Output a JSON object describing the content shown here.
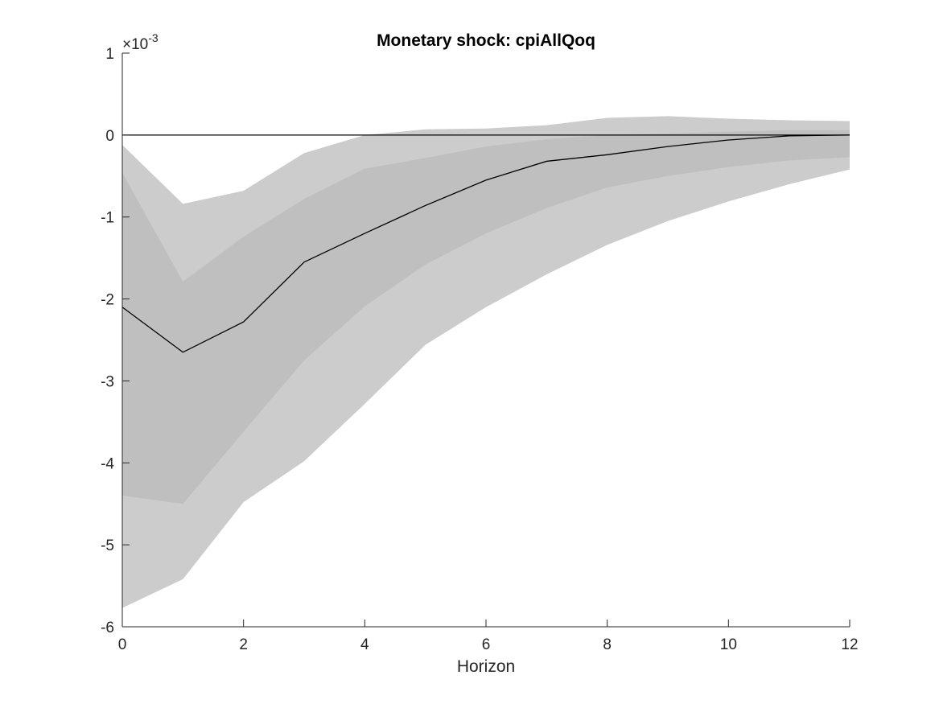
{
  "chart_data": {
    "type": "area",
    "title": "Monetary shock: cpiAllQoq",
    "xlabel": "Horizon",
    "ylabel": "",
    "scale_exponent": {
      "base": "×10",
      "power": "-3"
    },
    "xlim": [
      0,
      12
    ],
    "ylim": [
      -6,
      1
    ],
    "xticks": [
      "0",
      "2",
      "4",
      "6",
      "8",
      "10",
      "12"
    ],
    "yticks": [
      "1",
      "0",
      "-1",
      "-2",
      "-3",
      "-4",
      "-5",
      "-6"
    ],
    "grid": false,
    "x": [
      0,
      1,
      2,
      3,
      4,
      5,
      6,
      7,
      8,
      9,
      10,
      11,
      12
    ],
    "series": [
      {
        "kind": "band",
        "upper": [
          -0.12,
          -0.84,
          -0.68,
          -0.22,
          0.0,
          0.07,
          0.08,
          0.12,
          0.21,
          0.23,
          0.2,
          0.18,
          0.17
        ],
        "lower": [
          -5.77,
          -5.42,
          -4.48,
          -3.98,
          -3.28,
          -2.56,
          -2.1,
          -1.7,
          -1.34,
          -1.05,
          -0.81,
          -0.6,
          -0.42
        ],
        "color": "#cccccc"
      },
      {
        "kind": "band",
        "upper": [
          -0.46,
          -1.79,
          -1.24,
          -0.78,
          -0.41,
          -0.28,
          -0.14,
          -0.05,
          -0.0,
          0.02,
          0.04,
          0.06,
          0.06
        ],
        "lower": [
          -4.4,
          -4.5,
          -3.62,
          -2.75,
          -2.09,
          -1.58,
          -1.2,
          -0.89,
          -0.64,
          -0.5,
          -0.39,
          -0.31,
          -0.27
        ],
        "color": "#bfbfbf"
      },
      {
        "kind": "line",
        "values": [
          -2.1,
          -2.65,
          -2.28,
          -1.55,
          -1.2,
          -0.86,
          -0.55,
          -0.32,
          -0.24,
          -0.14,
          -0.06,
          -0.01,
          0.0
        ],
        "color": "#000000"
      }
    ],
    "reference_line": 0
  }
}
